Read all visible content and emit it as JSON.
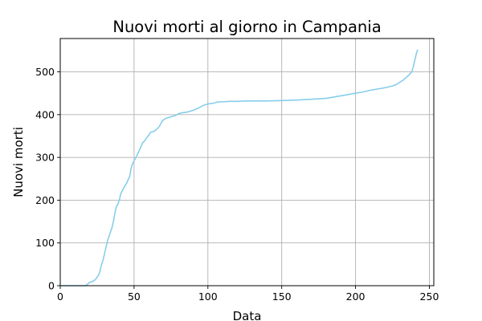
{
  "chart_data": {
    "type": "line",
    "title": "Nuovi morti al giorno in Campania",
    "xlabel": "Data",
    "ylabel": "Nuovi morti",
    "xlim": [
      0,
      253
    ],
    "ylim": [
      0,
      578
    ],
    "xticks": [
      0,
      50,
      100,
      150,
      200,
      250
    ],
    "yticks": [
      0,
      100,
      200,
      300,
      400,
      500
    ],
    "grid": true,
    "color": "#87ceeb",
    "series": [
      {
        "x": [
          0,
          17,
          18,
          20,
          22,
          24,
          25,
          26,
          27,
          28,
          29,
          30,
          31,
          32,
          33,
          34,
          35,
          36,
          37,
          38,
          39,
          40,
          41,
          42,
          43,
          44,
          45,
          46,
          47,
          48,
          49,
          50,
          51,
          52,
          53,
          54,
          55,
          56,
          57,
          58,
          59,
          60,
          61,
          62,
          63,
          64,
          65,
          66,
          67,
          68,
          69,
          70,
          71,
          72,
          73,
          74,
          75,
          76,
          78,
          80,
          82,
          84,
          86,
          88,
          90,
          92,
          94,
          96,
          98,
          100,
          102,
          104,
          106,
          108,
          110,
          115,
          120,
          125,
          130,
          140,
          150,
          160,
          170,
          180,
          190,
          200,
          205,
          210,
          215,
          220,
          225,
          228,
          230,
          232,
          234,
          236,
          238,
          239,
          240,
          241,
          242
        ],
        "y": [
          0,
          0,
          2,
          8,
          10,
          15,
          20,
          25,
          35,
          50,
          60,
          75,
          90,
          105,
          115,
          125,
          135,
          150,
          170,
          185,
          190,
          200,
          215,
          222,
          228,
          235,
          240,
          248,
          255,
          275,
          285,
          292,
          298,
          305,
          312,
          320,
          328,
          335,
          338,
          343,
          348,
          352,
          358,
          360,
          360,
          362,
          365,
          368,
          372,
          378,
          385,
          388,
          390,
          392,
          393,
          394,
          395,
          396,
          398,
          402,
          404,
          405,
          406,
          408,
          410,
          413,
          416,
          420,
          423,
          425,
          426,
          427,
          429,
          430,
          430,
          431,
          431,
          432,
          432,
          432,
          433,
          434,
          436,
          438,
          444,
          450,
          453,
          457,
          460,
          463,
          467,
          471,
          476,
          480,
          486,
          492,
          500,
          510,
          525,
          540,
          552
        ]
      }
    ]
  }
}
